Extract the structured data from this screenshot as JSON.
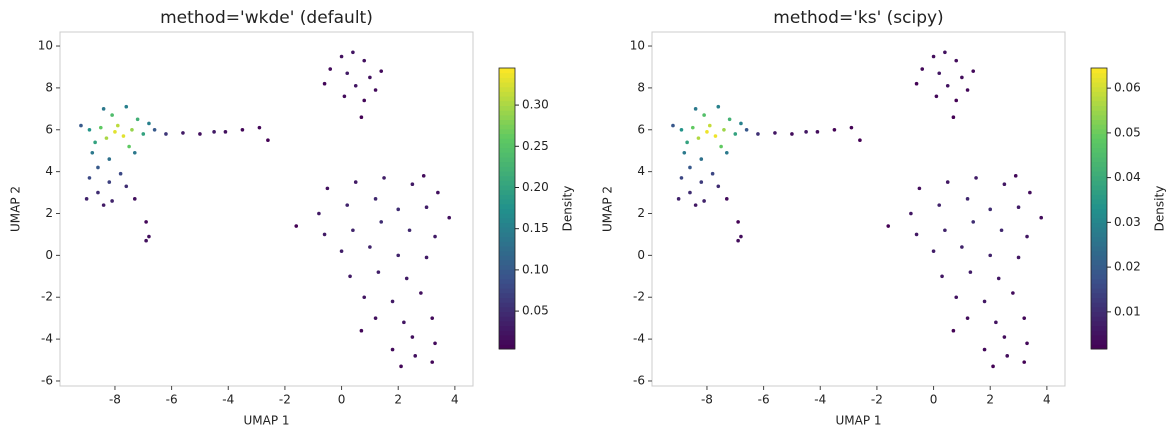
{
  "chart_data": [
    {
      "type": "scatter",
      "title": "method='wkde' (default)",
      "xlabel": "UMAP 1",
      "ylabel": "UMAP 2",
      "colorbar_label": "Density",
      "colormap": [
        "#440154",
        "#3b528b",
        "#21918c",
        "#5ec962",
        "#fde725"
      ],
      "xlim": [
        -9.94,
        4.64
      ],
      "ylim": [
        -6.24,
        10.67
      ],
      "clim": [
        0.004,
        0.345
      ],
      "xticks": [
        -8,
        -6,
        -4,
        -2,
        0,
        2,
        4
      ],
      "yticks": [
        -6,
        -4,
        -2,
        0,
        2,
        4,
        6,
        8,
        10
      ],
      "cticks": [
        0.05,
        {
          "value": 0.1,
          "label": "0.10"
        },
        0.15,
        {
          "value": 0.2,
          "label": "0.20"
        },
        0.25,
        {
          "value": 0.3,
          "label": "0.30"
        }
      ],
      "x": [
        -8,
        -7.7,
        -7.9,
        -8.3,
        -7.4,
        -8.5,
        -7.2,
        -8.1,
        -7.5,
        -8.7,
        -8.9,
        -7.0,
        -6.8,
        -7.6,
        -8.4,
        -9.2,
        -8.8,
        -8.2,
        -7.3,
        -8.6,
        -8.9,
        -8.2,
        -7.8,
        -8.6,
        -9.0,
        -8.1,
        -7.6,
        -8.4,
        -6.6,
        -6.2,
        -5.6,
        -5.0,
        -4.5,
        -4.1,
        -3.5,
        -2.9,
        -2.6,
        -7.3,
        -6.9,
        -6.8,
        -6.9,
        0,
        0.4,
        0.8,
        -0.4,
        0.2,
        1.0,
        1.4,
        -0.6,
        0.5,
        1.2,
        0.1,
        0.8,
        0.7,
        -0.5,
        0.5,
        1.5,
        2.5,
        3.4,
        -0.8,
        0.2,
        1.2,
        2.0,
        3.0,
        3.8,
        -0.6,
        0.4,
        1.4,
        2.4,
        3.3,
        0,
        1,
        2,
        3,
        0.3,
        1.3,
        2.3,
        0.8,
        1.8,
        2.8,
        1.2,
        2.2,
        3.2,
        2.5,
        3.3,
        1.8,
        2.6,
        3.2,
        2.1,
        -1.6,
        0.7,
        2.9
      ],
      "y": [
        5.9,
        5.7,
        6.2,
        5.6,
        6.0,
        6.1,
        6.5,
        6.7,
        5.2,
        5.4,
        6.0,
        5.8,
        6.3,
        7.1,
        7.0,
        6.2,
        4.9,
        4.6,
        4.9,
        4.2,
        3.7,
        3.5,
        3.9,
        3.0,
        2.7,
        2.6,
        3.3,
        2.4,
        6.0,
        5.8,
        5.85,
        5.8,
        5.9,
        5.9,
        6.0,
        6.1,
        5.5,
        2.7,
        1.6,
        0.9,
        0.7,
        9.5,
        9.7,
        9.3,
        8.9,
        8.7,
        8.5,
        8.8,
        8.2,
        8.1,
        7.9,
        7.6,
        7.4,
        6.6,
        3.2,
        3.5,
        3.7,
        3.4,
        3.0,
        2.0,
        2.4,
        2.7,
        2.2,
        2.3,
        1.8,
        1.0,
        1.2,
        1.6,
        1.2,
        0.9,
        0.2,
        0.4,
        0,
        -0.1,
        -1,
        -0.8,
        -1.1,
        -2,
        -2.2,
        -1.8,
        -3,
        -3.2,
        -3,
        -3.9,
        -4.2,
        -4.5,
        -4.8,
        -5.1,
        -5.3,
        1.4,
        -3.6,
        3.8
      ],
      "values": [
        0.33,
        0.33,
        0.31,
        0.3,
        0.29,
        0.26,
        0.22,
        0.24,
        0.26,
        0.2,
        0.18,
        0.2,
        0.15,
        0.15,
        0.14,
        0.1,
        0.14,
        0.13,
        0.14,
        0.1,
        0.08,
        0.07,
        0.08,
        0.05,
        0.04,
        0.04,
        0.05,
        0.03,
        0.1,
        0.06,
        0.03,
        0.02,
        0.03,
        0.02,
        0.01,
        0.01,
        0.005,
        0.02,
        0.01,
        0.02,
        0.02,
        0.02,
        0.025,
        0.02,
        0.015,
        0.03,
        0.02,
        0.015,
        0.01,
        0.025,
        0.015,
        0.015,
        0.01,
        0.005,
        0.02,
        0.03,
        0.035,
        0.03,
        0.02,
        0.03,
        0.04,
        0.045,
        0.05,
        0.035,
        0.02,
        0.03,
        0.04,
        0.05,
        0.045,
        0.03,
        0.035,
        0.04,
        0.04,
        0.03,
        0.03,
        0.035,
        0.03,
        0.025,
        0.03,
        0.02,
        0.02,
        0.025,
        0.015,
        0.02,
        0.015,
        0.015,
        0.02,
        0.01,
        0.01,
        0.005,
        0.01,
        0.015
      ]
    },
    {
      "type": "scatter",
      "title": "method='ks' (scipy)",
      "xlabel": "UMAP 1",
      "ylabel": "UMAP 2",
      "colorbar_label": "Density",
      "colormap": [
        "#440154",
        "#3b528b",
        "#21918c",
        "#5ec962",
        "#fde725"
      ],
      "xlim": [
        -9.94,
        4.64
      ],
      "ylim": [
        -6.24,
        10.67
      ],
      "clim": [
        0.0017,
        0.0645
      ],
      "xticks": [
        -8,
        -6,
        -4,
        -2,
        0,
        2,
        4
      ],
      "yticks": [
        -6,
        -4,
        -2,
        0,
        2,
        4,
        6,
        8,
        10
      ],
      "cticks": [
        0.01,
        0.02,
        0.03,
        0.04,
        0.05,
        0.06
      ],
      "x": [
        -8,
        -7.7,
        -7.9,
        -8.3,
        -7.4,
        -8.5,
        -7.2,
        -8.1,
        -7.5,
        -8.7,
        -8.9,
        -7.0,
        -6.8,
        -7.6,
        -8.4,
        -9.2,
        -8.8,
        -8.2,
        -7.3,
        -8.6,
        -8.9,
        -8.2,
        -7.8,
        -8.6,
        -9.0,
        -8.1,
        -7.6,
        -8.4,
        -6.6,
        -6.2,
        -5.6,
        -5.0,
        -4.5,
        -4.1,
        -3.5,
        -2.9,
        -2.6,
        -7.3,
        -6.9,
        -6.8,
        -6.9,
        0,
        0.4,
        0.8,
        -0.4,
        0.2,
        1.0,
        1.4,
        -0.6,
        0.5,
        1.2,
        0.1,
        0.8,
        0.7,
        -0.5,
        0.5,
        1.5,
        2.5,
        3.4,
        -0.8,
        0.2,
        1.2,
        2.0,
        3.0,
        3.8,
        -0.6,
        0.4,
        1.4,
        2.4,
        3.3,
        0,
        1,
        2,
        3,
        0.3,
        1.3,
        2.3,
        0.8,
        1.8,
        2.8,
        1.2,
        2.2,
        3.2,
        2.5,
        3.3,
        1.8,
        2.6,
        3.2,
        2.1,
        -1.6,
        0.7,
        2.9
      ],
      "y": [
        5.9,
        5.7,
        6.2,
        5.6,
        6.0,
        6.1,
        6.5,
        6.7,
        5.2,
        5.4,
        6.0,
        5.8,
        6.3,
        7.1,
        7.0,
        6.2,
        4.9,
        4.6,
        4.9,
        4.2,
        3.7,
        3.5,
        3.9,
        3.0,
        2.7,
        2.6,
        3.3,
        2.4,
        6.0,
        5.8,
        5.85,
        5.8,
        5.9,
        5.9,
        6.0,
        6.1,
        5.5,
        2.7,
        1.6,
        0.9,
        0.7,
        9.5,
        9.7,
        9.3,
        8.9,
        8.7,
        8.5,
        8.8,
        8.2,
        8.1,
        7.9,
        7.6,
        7.4,
        6.6,
        3.2,
        3.5,
        3.7,
        3.4,
        3.0,
        2.0,
        2.4,
        2.7,
        2.2,
        2.3,
        1.8,
        1.0,
        1.2,
        1.6,
        1.2,
        0.9,
        0.2,
        0.4,
        0,
        -0.1,
        -1,
        -0.8,
        -1.1,
        -2,
        -2.2,
        -1.8,
        -3,
        -3.2,
        -3,
        -3.9,
        -4.2,
        -4.5,
        -4.8,
        -5.1,
        -5.3,
        1.4,
        -3.6,
        3.8
      ],
      "values": [
        0.063,
        0.063,
        0.059,
        0.057,
        0.055,
        0.049,
        0.042,
        0.046,
        0.049,
        0.038,
        0.034,
        0.038,
        0.029,
        0.029,
        0.027,
        0.019,
        0.027,
        0.025,
        0.027,
        0.019,
        0.015,
        0.013,
        0.015,
        0.01,
        0.008,
        0.008,
        0.01,
        0.006,
        0.019,
        0.011,
        0.006,
        0.004,
        0.006,
        0.004,
        0.002,
        0.002,
        0.001,
        0.004,
        0.002,
        0.004,
        0.004,
        0.004,
        0.005,
        0.004,
        0.003,
        0.006,
        0.004,
        0.003,
        0.002,
        0.005,
        0.003,
        0.003,
        0.002,
        0.001,
        0.004,
        0.006,
        0.007,
        0.006,
        0.004,
        0.006,
        0.008,
        0.009,
        0.01,
        0.007,
        0.004,
        0.006,
        0.008,
        0.01,
        0.009,
        0.006,
        0.007,
        0.008,
        0.008,
        0.006,
        0.006,
        0.007,
        0.006,
        0.005,
        0.006,
        0.004,
        0.004,
        0.005,
        0.003,
        0.004,
        0.003,
        0.003,
        0.004,
        0.002,
        0.002,
        0.001,
        0.002,
        0.003
      ]
    }
  ]
}
